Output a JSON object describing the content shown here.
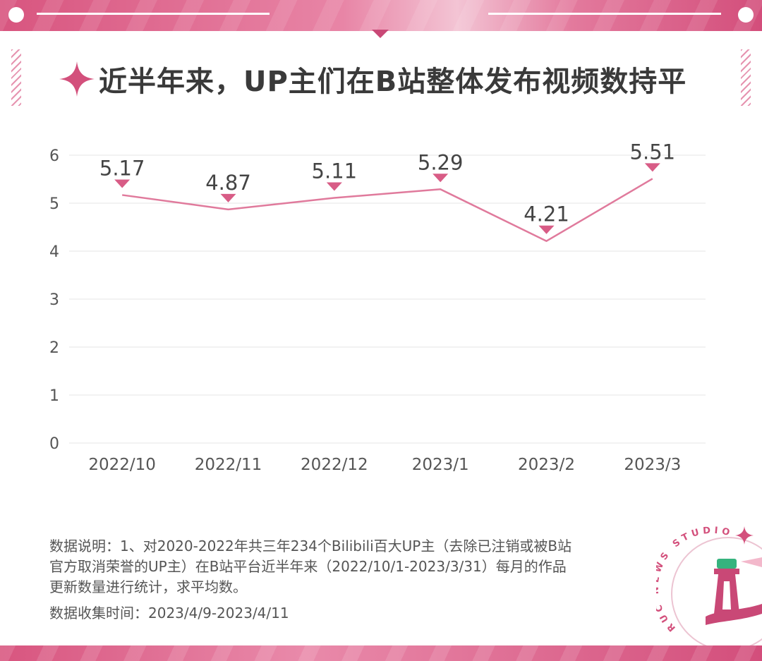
{
  "title": "近半年来，UP主们在B站整体发布视频数持平",
  "colors": {
    "accent": "#d3507c",
    "line": "#e07a9c",
    "marker": "#d85c86",
    "grid": "#e6e6e6",
    "text": "#555555",
    "title": "#3a3a3a"
  },
  "chart_data": {
    "type": "line",
    "title": "",
    "xlabel": "",
    "ylabel": "",
    "categories": [
      "2022/10",
      "2022/11",
      "2022/12",
      "2023/1",
      "2023/2",
      "2023/3"
    ],
    "values": [
      5.17,
      4.87,
      5.11,
      5.29,
      4.21,
      5.51
    ],
    "data_labels": [
      "5.17",
      "4.87",
      "5.11",
      "5.29",
      "4.21",
      "5.51"
    ],
    "yticks": [
      0,
      1,
      2,
      3,
      4,
      5,
      6
    ],
    "ylim": [
      0,
      6
    ],
    "grid": true,
    "legend": "none"
  },
  "notes": {
    "line1": "数据说明：1、对2020-2022年共三年234个Bilibili百大UP主（去除已注销或被B站",
    "line2": "官方取消荣誉的UP主）在B站平台近半年来（2022/10/1-2023/3/31）每月的作品",
    "line3": "更新数量进行统计，求平均数。",
    "collection": "数据收集时间：2023/4/9-2023/4/11"
  },
  "logo": {
    "text": "RUC NEWS STUDIO",
    "icon": "lighthouse-icon"
  }
}
